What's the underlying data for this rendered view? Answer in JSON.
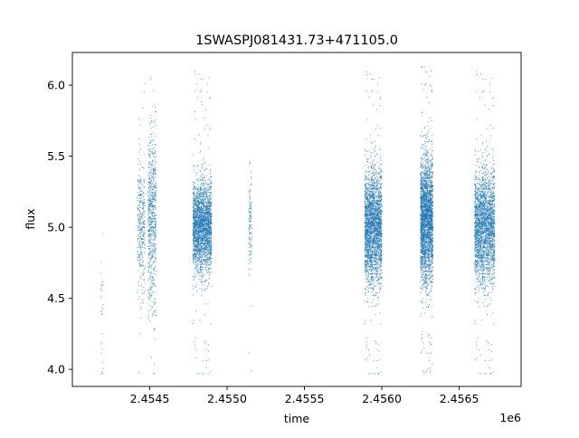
{
  "chart_data": {
    "type": "scatter",
    "title": "1SWASPJ081431.73+471105.0",
    "xlabel": "time",
    "ylabel": "flux",
    "x_offset_label": "1e6",
    "x_scale": 1000000,
    "xlim": [
      2.454,
      2.4569
    ],
    "ylim": [
      3.88,
      6.23
    ],
    "xticks": [
      2.4545,
      2.455,
      2.4555,
      2.456,
      2.4565
    ],
    "xtick_labels": [
      "2.4545",
      "2.4550",
      "2.4555",
      "2.4560",
      "2.4565"
    ],
    "yticks": [
      4.0,
      4.5,
      5.0,
      5.5,
      6.0
    ],
    "ytick_labels": [
      "4.0",
      "4.5",
      "5.0",
      "5.5",
      "6.0"
    ],
    "grid": false,
    "marker_color": "#1f77b4",
    "observing_seasons": [
      {
        "x_range": [
          2.45418,
          2.4542
        ],
        "center": 4.45,
        "spread": 0.25,
        "density": 30
      },
      {
        "x_range": [
          2.45442,
          2.45447
        ],
        "center": 5.0,
        "spread": 0.22,
        "density": 350
      },
      {
        "x_range": [
          2.45449,
          2.45454
        ],
        "center": 5.05,
        "spread": 0.32,
        "density": 700
      },
      {
        "x_range": [
          2.45478,
          2.4549
        ],
        "center": 5.0,
        "spread": 0.16,
        "density": 2600
      },
      {
        "x_range": [
          2.45514,
          2.45516
        ],
        "center": 5.05,
        "spread": 0.18,
        "density": 120
      },
      {
        "x_range": [
          2.45589,
          2.456
        ],
        "center": 5.0,
        "spread": 0.2,
        "density": 2800
      },
      {
        "x_range": [
          2.45625,
          2.45633
        ],
        "center": 5.05,
        "spread": 0.22,
        "density": 3000
      },
      {
        "x_range": [
          2.4566,
          2.45673
        ],
        "center": 5.0,
        "spread": 0.2,
        "density": 2600
      }
    ]
  }
}
